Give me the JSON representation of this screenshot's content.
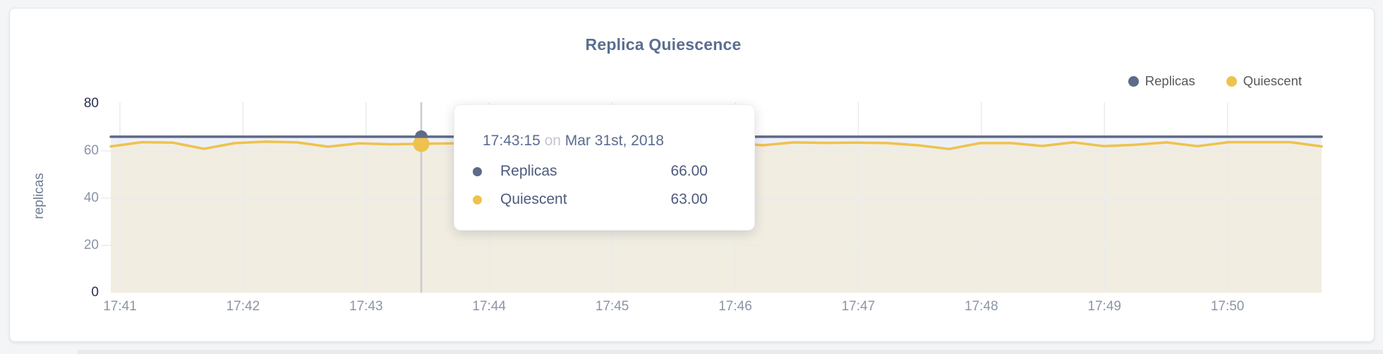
{
  "page": {
    "background": "#f4f5f6",
    "card_background": "#ffffff"
  },
  "header": {
    "title": "Replica Quiescence"
  },
  "legend": {
    "items": [
      {
        "label": "Replicas",
        "color": "#5e6a8a"
      },
      {
        "label": "Quiescent",
        "color": "#eec24d"
      }
    ]
  },
  "chart_data": {
    "type": "area",
    "title": "Replica Quiescence",
    "xlabel": "",
    "ylabel": "replicas",
    "ylim": [
      0,
      80
    ],
    "yticks": [
      0,
      20,
      40,
      60,
      80
    ],
    "xticks": [
      "17:41",
      "17:42",
      "17:43",
      "17:44",
      "17:45",
      "17:46",
      "17:47",
      "17:48",
      "17:49",
      "17:50"
    ],
    "grid": true,
    "legend_position": "top-right",
    "sample_interval_seconds": 15,
    "series": [
      {
        "name": "Replicas",
        "color": "#5e6a8a",
        "fill": "#eef0f5",
        "values": [
          66,
          66,
          66,
          66,
          66,
          66,
          66,
          66,
          66,
          66,
          66,
          66,
          66,
          66,
          66,
          66,
          66,
          66,
          66,
          66,
          66,
          66,
          66,
          66,
          66,
          66,
          66,
          66,
          66,
          66,
          66,
          66,
          66,
          66,
          66,
          66,
          66,
          66,
          66,
          66
        ]
      },
      {
        "name": "Quiescent",
        "color": "#eec24d",
        "fill": "#f1ede1",
        "values": [
          61.9,
          63.7,
          63.5,
          60.9,
          63.3,
          63.9,
          63.6,
          61.8,
          63.2,
          62.8,
          63.0,
          63.2,
          63.3,
          61.0,
          63.2,
          63.4,
          63.1,
          62.2,
          63.5,
          63.3,
          63.4,
          62.4,
          63.6,
          63.4,
          63.5,
          63.3,
          62.4,
          60.8,
          63.3,
          63.3,
          62.1,
          63.6,
          62.0,
          62.6,
          63.6,
          62.0,
          63.7,
          63.7,
          63.7,
          61.9
        ]
      }
    ],
    "hover_index": 10,
    "hover_values": {
      "Replicas": 66.0,
      "Quiescent": 63.0
    }
  },
  "tooltip": {
    "time": "17:43:15",
    "conjunction": "on",
    "date": "Mar 31st, 2018",
    "rows": [
      {
        "label": "Replicas",
        "value": "66.00",
        "color": "#5e6a8a"
      },
      {
        "label": "Quiescent",
        "value": "63.00",
        "color": "#eec24d"
      }
    ]
  },
  "colors": {
    "gridline": "#e9ebee",
    "crosshair": "#c9cbd1",
    "tick_dark": "#26304f",
    "tick_gray": "#8b94a5"
  }
}
